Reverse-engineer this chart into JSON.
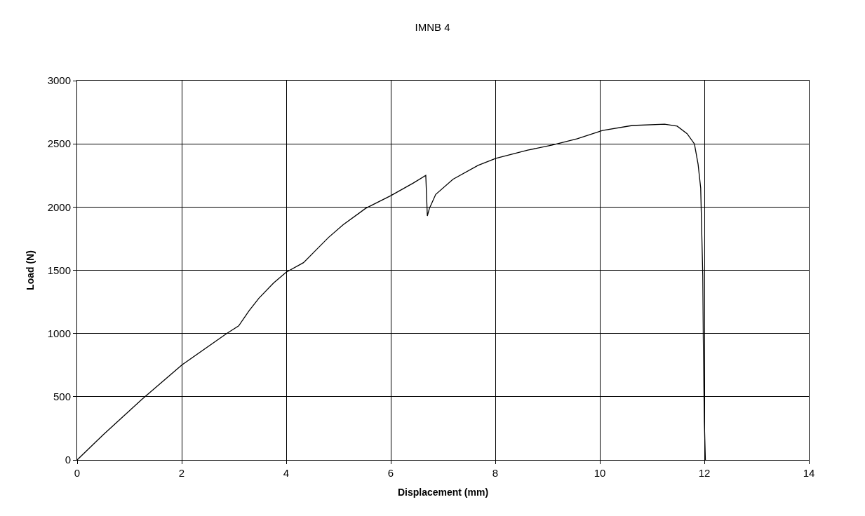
{
  "chart_data": {
    "type": "line",
    "title": "IMNB 4",
    "xlabel": "Displacement (mm)",
    "ylabel": "Load (N)",
    "xlim": [
      0,
      14
    ],
    "xticks": [
      0,
      2,
      4,
      6,
      8,
      10,
      12,
      14
    ],
    "ylim": [
      0,
      3000
    ],
    "yticks": [
      0,
      500,
      1000,
      1500,
      2000,
      2500,
      3000
    ],
    "grid": true,
    "marker": "none",
    "line_style": "solid",
    "series": [
      {
        "color": "#000000",
        "x": [
          0,
          0.5,
          1.24,
          2.0,
          2.86,
          3.09,
          3.29,
          3.48,
          3.76,
          4.0,
          4.33,
          4.57,
          4.81,
          5.09,
          5.52,
          6.0,
          6.43,
          6.67,
          6.7,
          6.74,
          6.86,
          7.19,
          7.67,
          8.01,
          8.62,
          9.09,
          9.57,
          10.05,
          10.62,
          11.24,
          11.48,
          11.67,
          11.81,
          11.88,
          11.93,
          11.97,
          11.98,
          12.0,
          12.02
        ],
        "values": [
          0,
          200,
          480,
          750,
          1000,
          1060,
          1180,
          1280,
          1400,
          1485,
          1560,
          1660,
          1760,
          1860,
          1990,
          2090,
          2190,
          2250,
          1930,
          1990,
          2100,
          2220,
          2330,
          2385,
          2450,
          2490,
          2540,
          2605,
          2645,
          2655,
          2640,
          2580,
          2500,
          2340,
          2150,
          1460,
          960,
          300,
          0
        ]
      }
    ]
  }
}
